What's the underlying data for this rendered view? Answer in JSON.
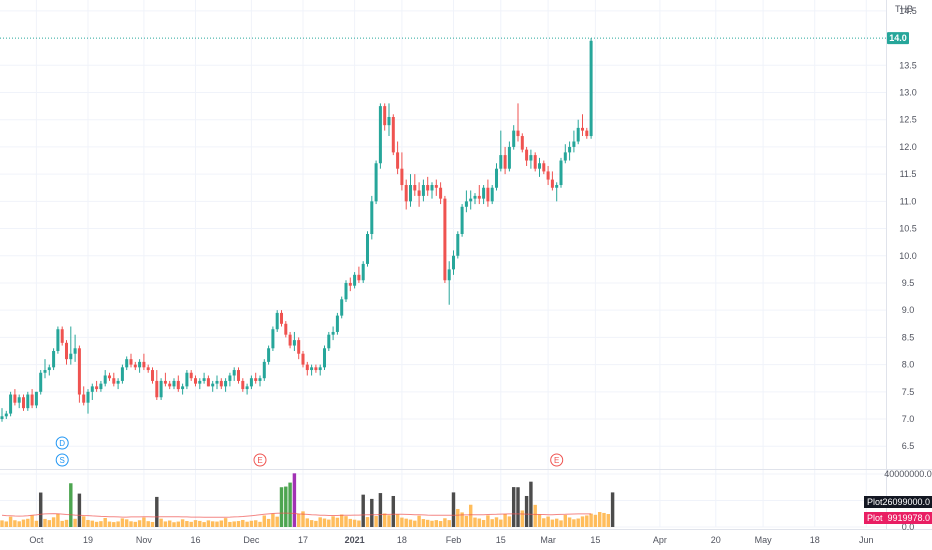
{
  "chart_data": {
    "type": "candlestick",
    "currency": "THB",
    "price_axis": {
      "ticks": [
        "6.5",
        "7.0",
        "7.5",
        "8.0",
        "8.5",
        "9.0",
        "9.5",
        "10.0",
        "10.5",
        "11.0",
        "11.5",
        "12.0",
        "12.5",
        "13.0",
        "13.5",
        "14.5"
      ],
      "range": [
        6.1,
        14.7
      ],
      "current_label": "14.0",
      "current_value": 14.0
    },
    "volume_axis": {
      "ticks": [
        "40000000.0",
        "20000000.0",
        "0.0"
      ],
      "range": [
        0,
        43000000
      ],
      "plot_label": "Plot",
      "last_volume_label": "26099000.0",
      "avg_label": "Plot",
      "avg_value_label": "9919978.0",
      "last_volume": 26099000,
      "avg_value": 9919978
    },
    "x_axis": {
      "labels": [
        {
          "text": "Oct",
          "bold": false,
          "i": 8
        },
        {
          "text": "19",
          "bold": false,
          "i": 20
        },
        {
          "text": "Nov",
          "bold": false,
          "i": 33
        },
        {
          "text": "16",
          "bold": false,
          "i": 45
        },
        {
          "text": "Dec",
          "bold": false,
          "i": 58
        },
        {
          "text": "17",
          "bold": false,
          "i": 70
        },
        {
          "text": "2021",
          "bold": true,
          "i": 82
        },
        {
          "text": "18",
          "bold": false,
          "i": 93
        },
        {
          "text": "Feb",
          "bold": false,
          "i": 105
        },
        {
          "text": "15",
          "bold": false,
          "i": 116
        },
        {
          "text": "Mar",
          "bold": false,
          "i": 127
        },
        {
          "text": "15",
          "bold": false,
          "i": 138
        },
        {
          "text": "Apr",
          "bold": false,
          "i": 153
        },
        {
          "text": "20",
          "bold": false,
          "i": 166
        },
        {
          "text": "May",
          "bold": false,
          "i": 177
        },
        {
          "text": "18",
          "bold": false,
          "i": 189
        },
        {
          "text": "Jun",
          "bold": false,
          "i": 201
        }
      ],
      "bar_count": 208
    },
    "markers": [
      {
        "text": "D",
        "i": 14,
        "color": "#2196f3",
        "row": 1
      },
      {
        "text": "S",
        "i": 14,
        "color": "#2196f3",
        "row": 2
      },
      {
        "text": "E",
        "i": 60,
        "color": "#ef5350",
        "row": 2
      },
      {
        "text": "E",
        "i": 129,
        "color": "#ef5350",
        "row": 2
      }
    ],
    "ohlc": [
      [
        7.0,
        7.2,
        6.95,
        7.05
      ],
      [
        7.05,
        7.15,
        7.0,
        7.1
      ],
      [
        7.1,
        7.5,
        7.05,
        7.45
      ],
      [
        7.45,
        7.55,
        7.25,
        7.3
      ],
      [
        7.3,
        7.45,
        7.2,
        7.4
      ],
      [
        7.4,
        7.45,
        7.15,
        7.2
      ],
      [
        7.2,
        7.5,
        7.15,
        7.45
      ],
      [
        7.45,
        7.55,
        7.2,
        7.25
      ],
      [
        7.25,
        7.5,
        7.2,
        7.5
      ],
      [
        7.5,
        7.9,
        7.45,
        7.85
      ],
      [
        7.85,
        8.1,
        7.75,
        7.9
      ],
      [
        7.9,
        8.0,
        7.8,
        7.95
      ],
      [
        7.95,
        8.3,
        7.9,
        8.25
      ],
      [
        8.25,
        8.7,
        8.2,
        8.65
      ],
      [
        8.65,
        8.7,
        8.35,
        8.4
      ],
      [
        8.4,
        8.45,
        8.0,
        8.1
      ],
      [
        8.1,
        8.7,
        8.0,
        8.2
      ],
      [
        8.2,
        8.55,
        8.05,
        8.3
      ],
      [
        8.3,
        8.35,
        7.3,
        7.45
      ],
      [
        7.45,
        7.6,
        7.25,
        7.3
      ],
      [
        7.3,
        7.55,
        7.1,
        7.5
      ],
      [
        7.5,
        7.65,
        7.35,
        7.6
      ],
      [
        7.6,
        7.7,
        7.5,
        7.55
      ],
      [
        7.55,
        7.7,
        7.5,
        7.65
      ],
      [
        7.65,
        7.9,
        7.6,
        7.8
      ],
      [
        7.8,
        7.85,
        7.7,
        7.75
      ],
      [
        7.75,
        7.85,
        7.6,
        7.65
      ],
      [
        7.65,
        7.75,
        7.55,
        7.7
      ],
      [
        7.7,
        8.0,
        7.65,
        7.95
      ],
      [
        7.95,
        8.15,
        7.9,
        8.1
      ],
      [
        8.1,
        8.2,
        7.95,
        8.0
      ],
      [
        8.0,
        8.05,
        7.9,
        7.95
      ],
      [
        7.95,
        8.1,
        7.85,
        8.05
      ],
      [
        8.05,
        8.2,
        7.9,
        7.95
      ],
      [
        7.95,
        8.0,
        7.85,
        7.9
      ],
      [
        7.9,
        7.95,
        7.65,
        7.7
      ],
      [
        7.7,
        7.9,
        7.35,
        7.4
      ],
      [
        7.4,
        7.75,
        7.35,
        7.7
      ],
      [
        7.7,
        7.85,
        7.6,
        7.65
      ],
      [
        7.65,
        7.7,
        7.55,
        7.6
      ],
      [
        7.6,
        7.75,
        7.55,
        7.7
      ],
      [
        7.7,
        7.8,
        7.5,
        7.55
      ],
      [
        7.55,
        7.65,
        7.45,
        7.6
      ],
      [
        7.6,
        7.9,
        7.55,
        7.85
      ],
      [
        7.85,
        7.9,
        7.7,
        7.75
      ],
      [
        7.75,
        7.8,
        7.6,
        7.65
      ],
      [
        7.65,
        7.75,
        7.55,
        7.7
      ],
      [
        7.7,
        7.85,
        7.65,
        7.75
      ],
      [
        7.75,
        7.8,
        7.6,
        7.6
      ],
      [
        7.6,
        7.7,
        7.5,
        7.65
      ],
      [
        7.65,
        7.8,
        7.55,
        7.7
      ],
      [
        7.7,
        7.75,
        7.55,
        7.6
      ],
      [
        7.6,
        7.75,
        7.5,
        7.7
      ],
      [
        7.7,
        7.85,
        7.6,
        7.8
      ],
      [
        7.8,
        7.95,
        7.7,
        7.9
      ],
      [
        7.9,
        7.95,
        7.65,
        7.7
      ],
      [
        7.7,
        7.75,
        7.5,
        7.55
      ],
      [
        7.55,
        7.65,
        7.45,
        7.6
      ],
      [
        7.6,
        7.8,
        7.55,
        7.75
      ],
      [
        7.75,
        7.85,
        7.65,
        7.7
      ],
      [
        7.7,
        7.8,
        7.6,
        7.75
      ],
      [
        7.75,
        8.1,
        7.7,
        8.05
      ],
      [
        8.05,
        8.35,
        8.0,
        8.3
      ],
      [
        8.3,
        8.7,
        8.25,
        8.65
      ],
      [
        8.65,
        9.0,
        8.6,
        8.95
      ],
      [
        8.95,
        9.0,
        8.7,
        8.75
      ],
      [
        8.75,
        8.8,
        8.5,
        8.55
      ],
      [
        8.55,
        8.6,
        8.3,
        8.35
      ],
      [
        8.35,
        8.6,
        8.25,
        8.45
      ],
      [
        8.45,
        8.5,
        8.1,
        8.2
      ],
      [
        8.2,
        8.25,
        7.95,
        8.0
      ],
      [
        8.0,
        8.05,
        7.8,
        7.9
      ],
      [
        7.9,
        8.0,
        7.8,
        7.95
      ],
      [
        7.95,
        8.0,
        7.85,
        7.9
      ],
      [
        7.9,
        8.0,
        7.8,
        7.95
      ],
      [
        7.95,
        8.35,
        7.9,
        8.3
      ],
      [
        8.3,
        8.6,
        8.25,
        8.55
      ],
      [
        8.55,
        8.7,
        8.45,
        8.6
      ],
      [
        8.6,
        8.95,
        8.55,
        8.9
      ],
      [
        8.9,
        9.25,
        8.85,
        9.2
      ],
      [
        9.2,
        9.55,
        9.15,
        9.5
      ],
      [
        9.5,
        9.6,
        9.35,
        9.45
      ],
      [
        9.45,
        9.7,
        9.4,
        9.65
      ],
      [
        9.65,
        9.8,
        9.5,
        9.55
      ],
      [
        9.55,
        9.9,
        9.5,
        9.85
      ],
      [
        9.85,
        10.45,
        9.8,
        10.4
      ],
      [
        10.4,
        11.1,
        10.3,
        11.0
      ],
      [
        11.0,
        11.75,
        10.95,
        11.7
      ],
      [
        11.7,
        12.8,
        11.6,
        12.75
      ],
      [
        12.75,
        12.8,
        12.3,
        12.4
      ],
      [
        12.4,
        12.8,
        12.2,
        12.55
      ],
      [
        12.55,
        12.6,
        11.85,
        11.9
      ],
      [
        11.9,
        12.1,
        11.5,
        11.6
      ],
      [
        11.6,
        11.9,
        11.2,
        11.3
      ],
      [
        11.3,
        11.4,
        10.85,
        11.0
      ],
      [
        11.0,
        11.5,
        10.9,
        11.3
      ],
      [
        11.3,
        11.5,
        11.1,
        11.2
      ],
      [
        11.2,
        11.35,
        10.9,
        11.1
      ],
      [
        11.1,
        11.4,
        11.0,
        11.3
      ],
      [
        11.3,
        11.45,
        11.1,
        11.2
      ],
      [
        11.2,
        11.35,
        11.05,
        11.3
      ],
      [
        11.3,
        11.4,
        11.1,
        11.25
      ],
      [
        11.25,
        11.35,
        10.95,
        11.05
      ],
      [
        11.05,
        11.1,
        9.5,
        9.55
      ],
      [
        9.55,
        9.9,
        9.1,
        9.75
      ],
      [
        9.75,
        10.1,
        9.65,
        10.0
      ],
      [
        10.0,
        10.45,
        9.95,
        10.4
      ],
      [
        10.4,
        10.95,
        10.35,
        10.9
      ],
      [
        10.9,
        11.2,
        10.8,
        11.0
      ],
      [
        11.0,
        11.2,
        10.85,
        11.05
      ],
      [
        11.05,
        11.15,
        10.95,
        11.1
      ],
      [
        11.1,
        11.3,
        10.95,
        11.05
      ],
      [
        11.05,
        11.3,
        10.95,
        11.25
      ],
      [
        11.25,
        11.4,
        10.9,
        11.0
      ],
      [
        11.0,
        11.3,
        10.95,
        11.25
      ],
      [
        11.25,
        11.7,
        11.2,
        11.6
      ],
      [
        11.6,
        12.3,
        11.55,
        11.85
      ],
      [
        11.85,
        12.0,
        11.5,
        11.6
      ],
      [
        11.6,
        12.1,
        11.55,
        12.0
      ],
      [
        12.0,
        12.4,
        11.95,
        12.3
      ],
      [
        12.3,
        12.8,
        12.1,
        12.2
      ],
      [
        12.2,
        12.25,
        11.9,
        11.95
      ],
      [
        11.95,
        12.0,
        11.65,
        11.75
      ],
      [
        11.75,
        11.95,
        11.6,
        11.85
      ],
      [
        11.85,
        11.9,
        11.55,
        11.6
      ],
      [
        11.6,
        11.8,
        11.45,
        11.7
      ],
      [
        11.7,
        11.75,
        11.5,
        11.55
      ],
      [
        11.55,
        11.65,
        11.3,
        11.4
      ],
      [
        11.4,
        11.55,
        11.2,
        11.25
      ],
      [
        11.25,
        11.35,
        11.0,
        11.3
      ],
      [
        11.3,
        11.8,
        11.25,
        11.75
      ],
      [
        11.75,
        12.05,
        11.7,
        11.9
      ],
      [
        11.9,
        12.1,
        11.75,
        12.0
      ],
      [
        12.0,
        12.3,
        11.9,
        12.1
      ],
      [
        12.1,
        12.5,
        12.05,
        12.35
      ],
      [
        12.35,
        12.6,
        12.2,
        12.3
      ],
      [
        12.3,
        12.35,
        12.15,
        12.2
      ],
      [
        12.2,
        14.0,
        12.15,
        13.95
      ]
    ],
    "volume": [
      5000000,
      4200000,
      7800000,
      5100000,
      4300000,
      5600000,
      6200000,
      8800000,
      4700000,
      26000000,
      6100000,
      5200000,
      7300000,
      9800000,
      4600000,
      5400000,
      33000000,
      6200000,
      25200000,
      8100000,
      5300000,
      4800000,
      3900000,
      4400000,
      6800000,
      4100000,
      3700000,
      4200000,
      6500000,
      5800000,
      4300000,
      3900000,
      5100000,
      7200000,
      4400000,
      3800000,
      22700000,
      6300000,
      4200000,
      4900000,
      3600000,
      4100000,
      5800000,
      4500000,
      3900000,
      5200000,
      4600000,
      3700000,
      5000000,
      4300000,
      4100000,
      4900000,
      6700000,
      3800000,
      4200000,
      4500000,
      5300000,
      4000000,
      4700000,
      5100000,
      3900000,
      8700000,
      6100000,
      10100000,
      7800000,
      30000000,
      30500000,
      33500000,
      40500000,
      9900000,
      11800000,
      6500000,
      5200000,
      4600000,
      7300000,
      6400000,
      5600000,
      8100000,
      7000000,
      9400000,
      8200000,
      6100000,
      5500000,
      4900000,
      24400000,
      7500000,
      21200000,
      8300000,
      25600000,
      10200000,
      8900000,
      23400000,
      9700000,
      7100000,
      6300000,
      5600000,
      4800000,
      8500000,
      6000000,
      5400000,
      4700000,
      5200000,
      4500000,
      6600000,
      5200000,
      26100000,
      13600000,
      11000000,
      8300000,
      16800000,
      7100000,
      6400000,
      5300000,
      8800000,
      5900000,
      7300000,
      5600000,
      9800000,
      8000000,
      30100000,
      30000000,
      12500000,
      23400000,
      34200000,
      16700000,
      9500000,
      6600000,
      7900000,
      5600000,
      6300000,
      5000000,
      9100000,
      7200000,
      5800000,
      6400000,
      8000000,
      8700000,
      10100000,
      9200000,
      11300000,
      10600000,
      9800000,
      26100000
    ],
    "avg_line": [
      8800000,
      8600000,
      8500000,
      8300000,
      8200000,
      8300000,
      8500000,
      8800000,
      9100000,
      9600000,
      9900000,
      10000000,
      10100000,
      10000000,
      9700000,
      9400000,
      9200000,
      9000000,
      8800000,
      8700000,
      8600000,
      8400000,
      8200000,
      8000000,
      7900000,
      7800000,
      7700000,
      7600000,
      7500000,
      7500000,
      7600000,
      7600000,
      7600000,
      7700000,
      7700000,
      7600000,
      7600000,
      7700000,
      7800000,
      7800000,
      7700000,
      7700000,
      7600000,
      7600000,
      7500000,
      7500000,
      7500000,
      7400000,
      7400000,
      7400000,
      7400000,
      7400000,
      7400000,
      7500000,
      7600000,
      7700000,
      7900000,
      8200000,
      8500000,
      8800000,
      9200000,
      9600000,
      9900000,
      10200000,
      10400000,
      10500000,
      10500000,
      10400000,
      10200000,
      9900000,
      9700000,
      9500000,
      9300000,
      9100000,
      8900000,
      8800000,
      8700000,
      8700000,
      8700000,
      8800000,
      8800000,
      8900000,
      9000000,
      9000000,
      9100000,
      9200000,
      9200000,
      9300000,
      9400000,
      9500000,
      9500000,
      9600000,
      9600000,
      9600000,
      9500000,
      9400000,
      9300000,
      9200000,
      9100000,
      9000000,
      8900000,
      8800000,
      8800000,
      8800000,
      8800000,
      8900000,
      9000000,
      9100000,
      9100000,
      9200000,
      9200000,
      9200000,
      9300000,
      9400000,
      9500000,
      9600000,
      9700000,
      9800000,
      9900000,
      9900000,
      9900000,
      9800000,
      9700000,
      9600000,
      9500000,
      9400000,
      9400000,
      9300000,
      9300000,
      9400000,
      9500000,
      9600000,
      9700000,
      9800000,
      9850000,
      9900000,
      9910000,
      9919978
    ],
    "colors": {
      "up": "#26a69a",
      "down": "#ef5350",
      "vol": "#ffa726",
      "vol_dark": "#424242",
      "vol_green": "#43a047",
      "vol_purple": "#9c27b0",
      "avg": "#ef5350",
      "price_tag": "#26a69a",
      "plot_tag": "#131722",
      "avg_tag": "#e91e63"
    }
  }
}
